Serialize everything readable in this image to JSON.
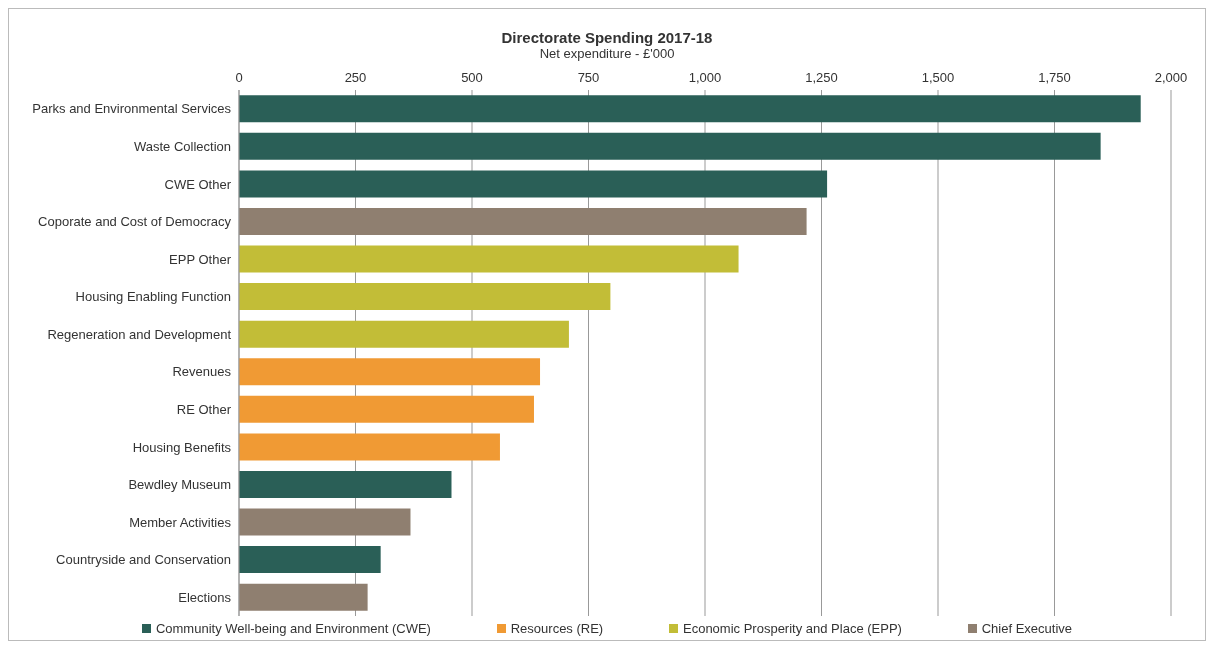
{
  "chart_data": {
    "type": "bar",
    "orientation": "horizontal",
    "stacked": true,
    "title": "Directorate Spending 2017-18",
    "subtitle": "Net expenditure - £'000",
    "categories": [
      "Parks and Environmental Services",
      "Waste Collection",
      "CWE Other",
      "Coporate and Cost of Democracy",
      "EPP Other",
      "Housing Enabling Function",
      "Regeneration and Development",
      "Revenues",
      "RE Other",
      "Housing Benefits",
      "Bewdley Museum",
      "Member Activities",
      "Countryside and Conservation",
      "Elections"
    ],
    "series": [
      {
        "name": "Community Well-being and Environment (CWE)",
        "color": "#2a5f57",
        "values": [
          1935,
          1849,
          1262,
          null,
          null,
          null,
          null,
          null,
          null,
          null,
          456,
          null,
          304,
          null
        ]
      },
      {
        "name": "Resources (RE)",
        "color": "#f09a34",
        "values": [
          null,
          null,
          null,
          null,
          null,
          null,
          null,
          646,
          633,
          560,
          null,
          null,
          null,
          null
        ]
      },
      {
        "name": "Economic Prosperity and Place (EPP)",
        "color": "#c2bd37",
        "values": [
          null,
          null,
          null,
          null,
          1072,
          797,
          708,
          null,
          null,
          null,
          null,
          null,
          null,
          null
        ]
      },
      {
        "name": "Chief Executive",
        "color": "#8f7f70",
        "values": [
          null,
          null,
          null,
          1218,
          null,
          null,
          null,
          null,
          null,
          null,
          null,
          368,
          null,
          276
        ]
      }
    ],
    "xlim": [
      0,
      2000
    ],
    "xticks": [
      0,
      250,
      500,
      750,
      {
        "value": 1000,
        "label": "1,000"
      },
      {
        "value": 1250,
        "label": "1,250"
      },
      {
        "value": 1500,
        "label": "1,500"
      },
      {
        "value": 1750,
        "label": "1,750"
      },
      {
        "value": 2000,
        "label": "2,000"
      }
    ],
    "grid": "x",
    "legend": "bottom"
  }
}
